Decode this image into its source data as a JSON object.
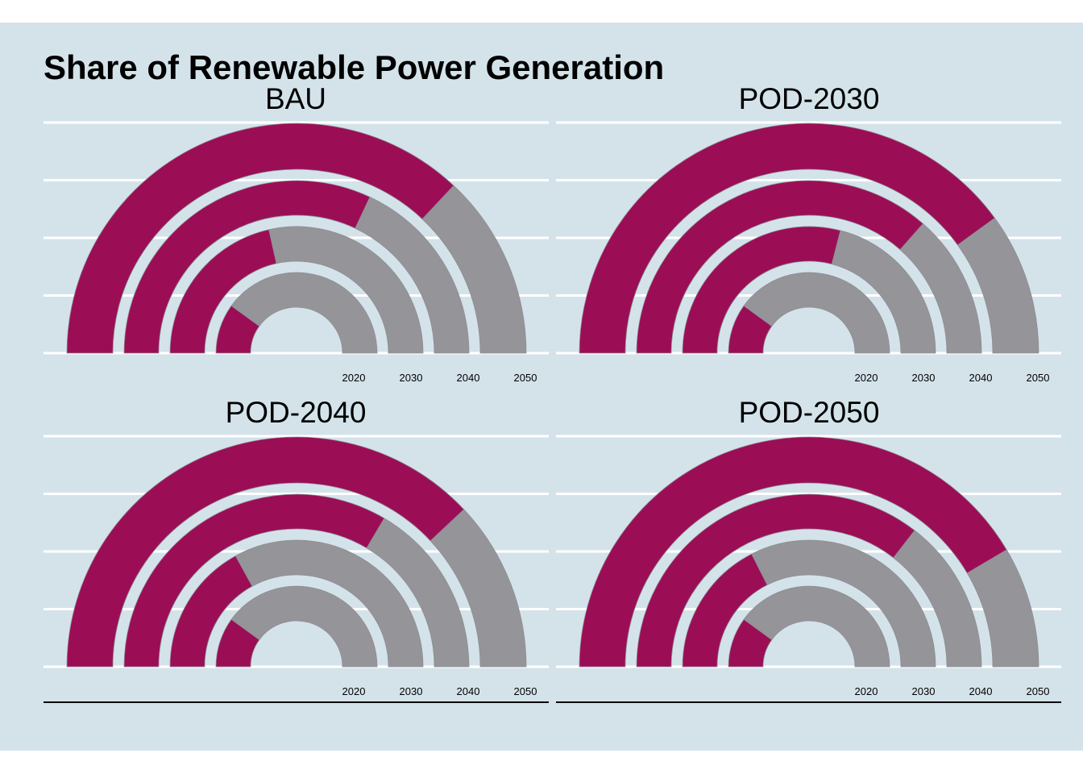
{
  "colors": {
    "background": "#d4e3ea",
    "renewable": "#9b0e56",
    "other": "#959498",
    "gridline": "#ffffff",
    "axis_line": "#000000",
    "text": "#000000"
  },
  "chart_data": {
    "type": "bar",
    "coord": "polar-semicircle",
    "title": "Share of Renewable Power Generation",
    "ylim": [
      0,
      1
    ],
    "grid": true,
    "legend": "none",
    "categories": [
      "2020",
      "2030",
      "2040",
      "2050"
    ],
    "panels": [
      {
        "name": "BAU",
        "values": [
          0.2,
          0.43,
          0.64,
          0.74
        ]
      },
      {
        "name": "POD-2030",
        "values": [
          0.2,
          0.58,
          0.73,
          0.8
        ]
      },
      {
        "name": "POD-2040",
        "values": [
          0.2,
          0.34,
          0.67,
          0.76
        ]
      },
      {
        "name": "POD-2050",
        "values": [
          0.2,
          0.35,
          0.71,
          0.83
        ]
      }
    ]
  }
}
